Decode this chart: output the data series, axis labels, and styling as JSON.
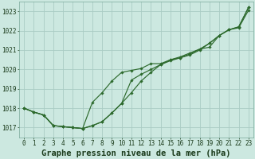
{
  "title": "Graphe pression niveau de la mer (hPa)",
  "hours": [
    0,
    1,
    2,
    3,
    4,
    5,
    6,
    7,
    8,
    9,
    10,
    11,
    12,
    13,
    14,
    15,
    16,
    17,
    18,
    19,
    20,
    21,
    22,
    23
  ],
  "line1": [
    1018.0,
    1017.8,
    1017.65,
    1017.1,
    1017.05,
    1017.0,
    1016.95,
    1017.1,
    1017.3,
    1017.75,
    1018.25,
    1018.8,
    1019.4,
    1019.85,
    1020.25,
    1020.45,
    1020.6,
    1020.75,
    1021.0,
    1021.35,
    1021.75,
    1022.05,
    1022.2,
    1023.2
  ],
  "line2": [
    1018.0,
    1017.8,
    1017.65,
    1017.1,
    1017.05,
    1017.0,
    1016.95,
    1018.3,
    1018.8,
    1019.4,
    1019.85,
    1019.95,
    1020.05,
    1020.3,
    1020.3,
    1020.5,
    1020.65,
    1020.85,
    1021.05,
    1021.15,
    1021.75,
    1022.05,
    1022.15,
    1023.05
  ],
  "line3": [
    1018.0,
    1017.8,
    1017.65,
    1017.1,
    1017.05,
    1017.0,
    1016.95,
    1017.1,
    1017.3,
    1017.75,
    1018.25,
    1019.45,
    1019.75,
    1020.0,
    1020.25,
    1020.5,
    1020.6,
    1020.8,
    1021.05,
    1021.35,
    1021.75,
    1022.05,
    1022.2,
    1023.2
  ],
  "line_color": "#2d6a2d",
  "bg_color": "#cce8e0",
  "grid_color": "#aaccc4",
  "ylim": [
    1016.5,
    1023.5
  ],
  "yticks": [
    1017,
    1018,
    1019,
    1020,
    1021,
    1022,
    1023
  ],
  "tick_fontsize": 5.5,
  "title_fontsize": 7.5
}
